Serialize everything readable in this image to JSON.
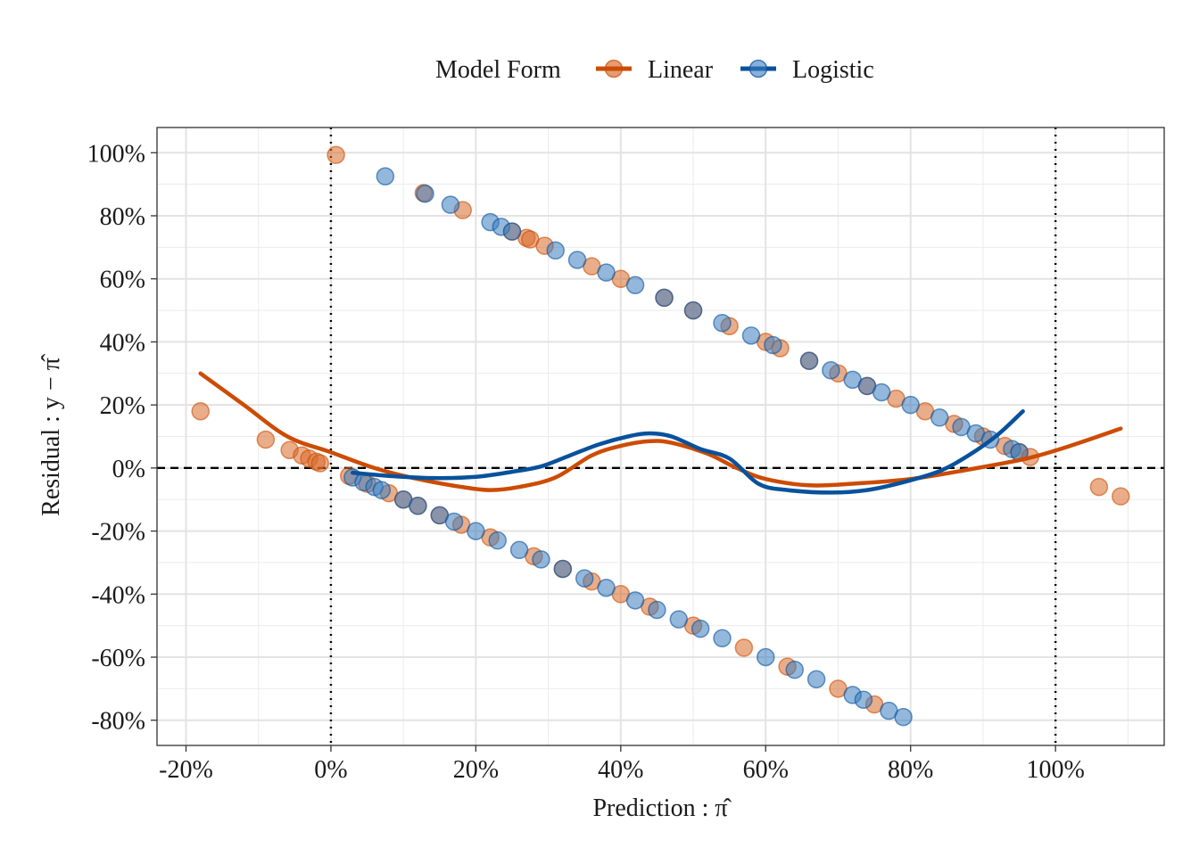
{
  "chart_data": {
    "type": "scatter",
    "title": "",
    "xlabel": "Prediction : π̂",
    "ylabel": "Residual : y − π̂",
    "xlim": [
      -0.24,
      1.15
    ],
    "ylim": [
      -0.88,
      1.08
    ],
    "x_ticks": [
      -0.2,
      0,
      0.2,
      0.4,
      0.6,
      0.8,
      1.0
    ],
    "x_tick_labels": [
      "-20%",
      "0%",
      "20%",
      "40%",
      "60%",
      "80%",
      "100%"
    ],
    "y_ticks": [
      -0.8,
      -0.6,
      -0.4,
      -0.2,
      0,
      0.2,
      0.4,
      0.6,
      0.8,
      1.0
    ],
    "y_tick_labels": [
      "-80%",
      "-60%",
      "-40%",
      "-20%",
      "0%",
      "20%",
      "40%",
      "60%",
      "80%",
      "100%"
    ],
    "grid": true,
    "reference_lines": {
      "horizontal_dashed_y": 0,
      "vertical_dotted_x": [
        0,
        1
      ]
    },
    "legend": {
      "title": "Model Form",
      "position": "top"
    },
    "series": [
      {
        "name": "Linear",
        "color": "#cc4c02",
        "points": [
          [
            -0.18,
            0.18
          ],
          [
            -0.09,
            0.09
          ],
          [
            -0.057,
            0.057
          ],
          [
            -0.04,
            0.04
          ],
          [
            -0.03,
            0.03
          ],
          [
            -0.02,
            0.02
          ],
          [
            -0.015,
            0.015
          ],
          [
            0.007,
            0.993
          ],
          [
            0.025,
            -0.025
          ],
          [
            0.05,
            -0.05
          ],
          [
            0.08,
            -0.08
          ],
          [
            0.1,
            -0.1
          ],
          [
            0.12,
            -0.12
          ],
          [
            0.128,
            0.872
          ],
          [
            0.15,
            -0.15
          ],
          [
            0.182,
            0.818
          ],
          [
            0.18,
            -0.18
          ],
          [
            0.22,
            -0.22
          ],
          [
            0.25,
            0.75
          ],
          [
            0.27,
            0.73
          ],
          [
            0.275,
            0.725
          ],
          [
            0.295,
            0.705
          ],
          [
            0.28,
            -0.28
          ],
          [
            0.32,
            -0.32
          ],
          [
            0.36,
            0.64
          ],
          [
            0.36,
            -0.36
          ],
          [
            0.4,
            0.6
          ],
          [
            0.4,
            -0.4
          ],
          [
            0.44,
            -0.44
          ],
          [
            0.46,
            0.54
          ],
          [
            0.5,
            0.5
          ],
          [
            0.5,
            -0.5
          ],
          [
            0.55,
            0.45
          ],
          [
            0.57,
            -0.57
          ],
          [
            0.6,
            0.4
          ],
          [
            0.62,
            0.38
          ],
          [
            0.63,
            -0.63
          ],
          [
            0.66,
            0.34
          ],
          [
            0.7,
            0.3
          ],
          [
            0.7,
            -0.7
          ],
          [
            0.74,
            0.26
          ],
          [
            0.75,
            -0.75
          ],
          [
            0.78,
            0.22
          ],
          [
            0.82,
            0.18
          ],
          [
            0.86,
            0.14
          ],
          [
            0.9,
            0.1
          ],
          [
            0.93,
            0.07
          ],
          [
            0.95,
            0.05
          ],
          [
            0.965,
            0.035
          ],
          [
            1.06,
            -0.06
          ],
          [
            1.09,
            -0.09
          ]
        ],
        "smooth": [
          [
            -0.18,
            0.3
          ],
          [
            -0.12,
            0.2
          ],
          [
            -0.06,
            0.1
          ],
          [
            0.0,
            0.05
          ],
          [
            0.06,
            0.0
          ],
          [
            0.12,
            -0.035
          ],
          [
            0.18,
            -0.06
          ],
          [
            0.22,
            -0.07
          ],
          [
            0.26,
            -0.06
          ],
          [
            0.31,
            -0.03
          ],
          [
            0.36,
            0.04
          ],
          [
            0.4,
            0.07
          ],
          [
            0.44,
            0.085
          ],
          [
            0.47,
            0.08
          ],
          [
            0.52,
            0.045
          ],
          [
            0.56,
            0.0
          ],
          [
            0.6,
            -0.035
          ],
          [
            0.66,
            -0.055
          ],
          [
            0.72,
            -0.05
          ],
          [
            0.8,
            -0.035
          ],
          [
            0.88,
            -0.005
          ],
          [
            0.96,
            0.03
          ],
          [
            1.02,
            0.07
          ],
          [
            1.09,
            0.125
          ]
        ]
      },
      {
        "name": "Logistic",
        "color": "#08519c",
        "points": [
          [
            0.075,
            0.925
          ],
          [
            0.13,
            0.87
          ],
          [
            0.165,
            0.835
          ],
          [
            0.22,
            0.78
          ],
          [
            0.235,
            0.765
          ],
          [
            0.25,
            0.75
          ],
          [
            0.31,
            0.69
          ],
          [
            0.34,
            0.66
          ],
          [
            0.38,
            0.62
          ],
          [
            0.42,
            0.58
          ],
          [
            0.46,
            0.54
          ],
          [
            0.5,
            0.5
          ],
          [
            0.54,
            0.46
          ],
          [
            0.58,
            0.42
          ],
          [
            0.61,
            0.39
          ],
          [
            0.66,
            0.34
          ],
          [
            0.69,
            0.31
          ],
          [
            0.72,
            0.28
          ],
          [
            0.74,
            0.26
          ],
          [
            0.76,
            0.24
          ],
          [
            0.8,
            0.2
          ],
          [
            0.84,
            0.16
          ],
          [
            0.87,
            0.13
          ],
          [
            0.89,
            0.11
          ],
          [
            0.91,
            0.09
          ],
          [
            0.94,
            0.06
          ],
          [
            0.95,
            0.05
          ],
          [
            0.03,
            -0.03
          ],
          [
            0.045,
            -0.045
          ],
          [
            0.06,
            -0.06
          ],
          [
            0.07,
            -0.07
          ],
          [
            0.1,
            -0.1
          ],
          [
            0.12,
            -0.12
          ],
          [
            0.15,
            -0.15
          ],
          [
            0.17,
            -0.17
          ],
          [
            0.2,
            -0.2
          ],
          [
            0.23,
            -0.23
          ],
          [
            0.26,
            -0.26
          ],
          [
            0.29,
            -0.29
          ],
          [
            0.32,
            -0.32
          ],
          [
            0.35,
            -0.35
          ],
          [
            0.38,
            -0.38
          ],
          [
            0.42,
            -0.42
          ],
          [
            0.45,
            -0.45
          ],
          [
            0.48,
            -0.48
          ],
          [
            0.51,
            -0.51
          ],
          [
            0.54,
            -0.54
          ],
          [
            0.6,
            -0.6
          ],
          [
            0.64,
            -0.64
          ],
          [
            0.67,
            -0.67
          ],
          [
            0.72,
            -0.72
          ],
          [
            0.735,
            -0.735
          ],
          [
            0.77,
            -0.77
          ],
          [
            0.79,
            -0.79
          ]
        ],
        "smooth": [
          [
            0.03,
            -0.015
          ],
          [
            0.08,
            -0.025
          ],
          [
            0.14,
            -0.032
          ],
          [
            0.2,
            -0.028
          ],
          [
            0.25,
            -0.012
          ],
          [
            0.29,
            0.005
          ],
          [
            0.33,
            0.04
          ],
          [
            0.37,
            0.075
          ],
          [
            0.41,
            0.1
          ],
          [
            0.44,
            0.11
          ],
          [
            0.47,
            0.1
          ],
          [
            0.51,
            0.06
          ],
          [
            0.55,
            0.03
          ],
          [
            0.59,
            -0.05
          ],
          [
            0.63,
            -0.07
          ],
          [
            0.69,
            -0.078
          ],
          [
            0.74,
            -0.07
          ],
          [
            0.79,
            -0.045
          ],
          [
            0.84,
            -0.01
          ],
          [
            0.88,
            0.04
          ],
          [
            0.92,
            0.105
          ],
          [
            0.955,
            0.18
          ]
        ]
      }
    ]
  }
}
